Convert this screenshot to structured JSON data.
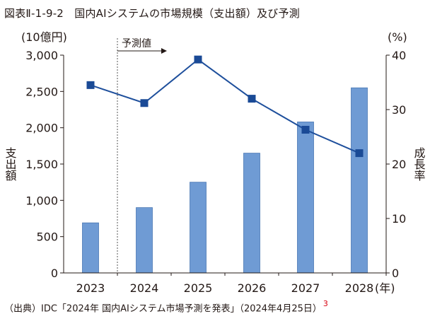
{
  "figure": {
    "title": "図表Ⅱ-1-9-2　国内AIシステムの市場規模（支出額）及び予測",
    "source": "（出典）IDC「2024年 国内AIシステム市場予測を発表」（2024年4月25日）",
    "footnote_ref": "3"
  },
  "chart_data": {
    "type": "bar",
    "categories": [
      "2023",
      "2024",
      "2025",
      "2026",
      "2027",
      "2028"
    ],
    "x_unit": "(年)",
    "series": [
      {
        "name": "支出額",
        "type": "bar",
        "axis": "left",
        "values": [
          690,
          900,
          1250,
          1650,
          2080,
          2550
        ]
      },
      {
        "name": "成長率",
        "type": "line",
        "axis": "right",
        "values": [
          34.5,
          31.2,
          39.2,
          32.0,
          26.3,
          22.0
        ]
      }
    ],
    "y_left": {
      "label": "支出額",
      "unit": "(10億円)",
      "min": 0,
      "max": 3000,
      "ticks": [
        "0",
        "500",
        "1,000",
        "1,500",
        "2,000",
        "2,500",
        "3,000"
      ]
    },
    "y_right": {
      "label": "成長率",
      "unit": "(%)",
      "min": 0,
      "max": 40,
      "ticks": [
        "0",
        "10",
        "20",
        "30",
        "40"
      ]
    },
    "forecast_label": "予測値",
    "forecast_from": "2024",
    "colors": {
      "bar": "#6f9bd4",
      "bar_border": "#4a78b3",
      "line": "#1e4f9c",
      "marker": "#1a4a96",
      "axis": "#231815"
    }
  }
}
